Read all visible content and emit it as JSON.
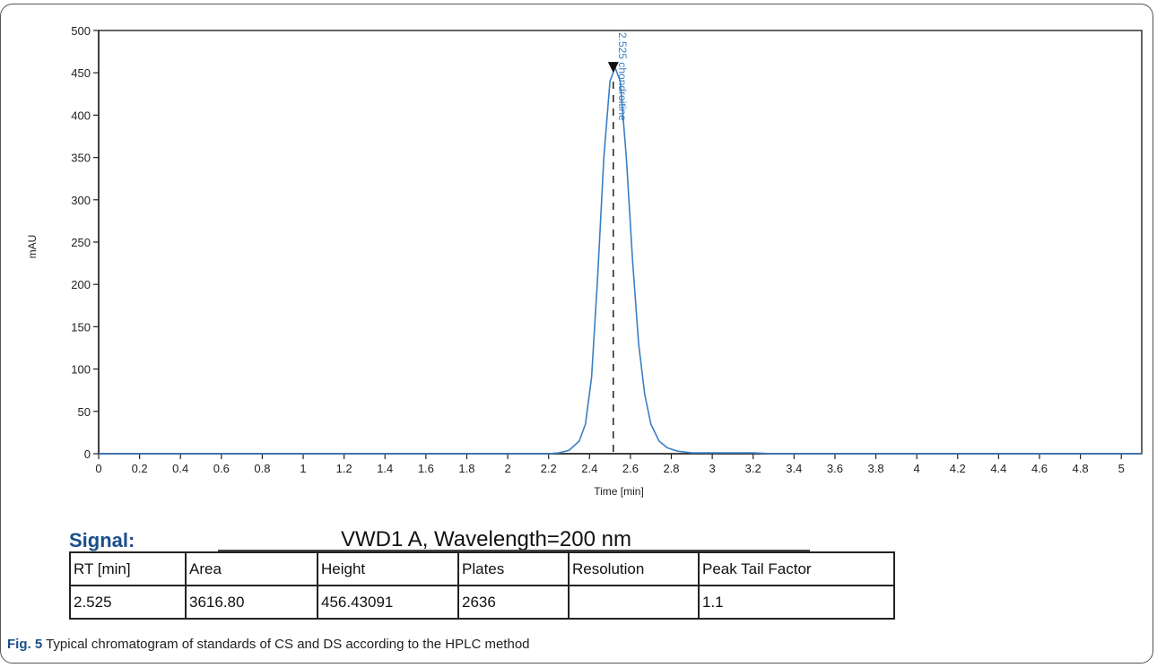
{
  "chart_data": {
    "type": "line",
    "title": "",
    "xlabel": "Time [min]",
    "ylabel": "mAU",
    "xlim": [
      0,
      5.1
    ],
    "ylim": [
      0,
      500
    ],
    "x_ticks": [
      {
        "value": 0,
        "label": "0"
      },
      {
        "value": 0.2,
        "label": "0.2"
      },
      {
        "value": 0.4,
        "label": "0.4"
      },
      {
        "value": 0.6,
        "label": "0.6"
      },
      {
        "value": 0.8,
        "label": "0.8"
      },
      {
        "value": 1.0,
        "label": "1"
      },
      {
        "value": 1.2,
        "label": "1.2"
      },
      {
        "value": 1.4,
        "label": "1.4"
      },
      {
        "value": 1.6,
        "label": "1.6"
      },
      {
        "value": 1.8,
        "label": "1.8"
      },
      {
        "value": 2.0,
        "label": "2"
      },
      {
        "value": 2.2,
        "label": "2.2"
      },
      {
        "value": 2.4,
        "label": "2.4"
      },
      {
        "value": 2.6,
        "label": "2.6"
      },
      {
        "value": 2.8,
        "label": "2.8"
      },
      {
        "value": 3.0,
        "label": "3"
      },
      {
        "value": 3.2,
        "label": "3.2"
      },
      {
        "value": 3.4,
        "label": "3.4"
      },
      {
        "value": 3.6,
        "label": "3.6"
      },
      {
        "value": 3.8,
        "label": "3.8"
      },
      {
        "value": 4.0,
        "label": "4"
      },
      {
        "value": 4.2,
        "label": "4.2"
      },
      {
        "value": 4.4,
        "label": "4.4"
      },
      {
        "value": 4.6,
        "label": "4.6"
      },
      {
        "value": 4.8,
        "label": "4.8"
      },
      {
        "value": 5.0,
        "label": "5"
      }
    ],
    "y_ticks": [
      0,
      50,
      100,
      150,
      200,
      250,
      300,
      350,
      400,
      450,
      500
    ],
    "grid": false,
    "series": [
      {
        "color": "#3a7fc4",
        "x": [
          0,
          0.2,
          0.4,
          0.6,
          0.8,
          1.0,
          1.2,
          1.4,
          1.6,
          1.8,
          2.0,
          2.2,
          2.25,
          2.3,
          2.35,
          2.38,
          2.41,
          2.44,
          2.47,
          2.5,
          2.525,
          2.55,
          2.58,
          2.61,
          2.64,
          2.67,
          2.7,
          2.74,
          2.78,
          2.83,
          2.9,
          3.0,
          3.1,
          3.2,
          3.3,
          3.4,
          3.6,
          3.8,
          4.0,
          4.2,
          4.4,
          4.6,
          4.8,
          5.0,
          5.1
        ],
        "y": [
          0,
          0,
          0,
          0,
          0,
          0,
          0,
          0,
          0,
          0,
          0,
          0,
          1,
          4,
          15,
          35,
          90,
          210,
          350,
          440,
          456.4,
          440,
          350,
          230,
          130,
          70,
          35,
          15,
          7,
          3,
          1,
          1,
          1,
          1,
          0,
          0,
          0,
          0,
          0,
          0,
          0,
          0,
          0,
          0,
          0
        ]
      }
    ],
    "annotations": [
      {
        "x": 2.525,
        "y": 456.43,
        "marker": "triangle-down",
        "text": "2.525 chondroitine"
      }
    ]
  },
  "signal": {
    "label": "Signal:",
    "description": "VWD1 A, Wavelength=200 nm"
  },
  "results_table": {
    "headers": [
      "RT [min]",
      "Area",
      "Height",
      "Plates",
      "Resolution",
      "Peak Tail Factor"
    ],
    "row": [
      "2.525",
      "3616.80",
      "456.43091",
      "2636",
      "",
      "1.1"
    ]
  },
  "caption": {
    "label": "Fig. 5",
    "text": " Typical chromatogram of standards of CS and DS according to the HPLC method"
  }
}
